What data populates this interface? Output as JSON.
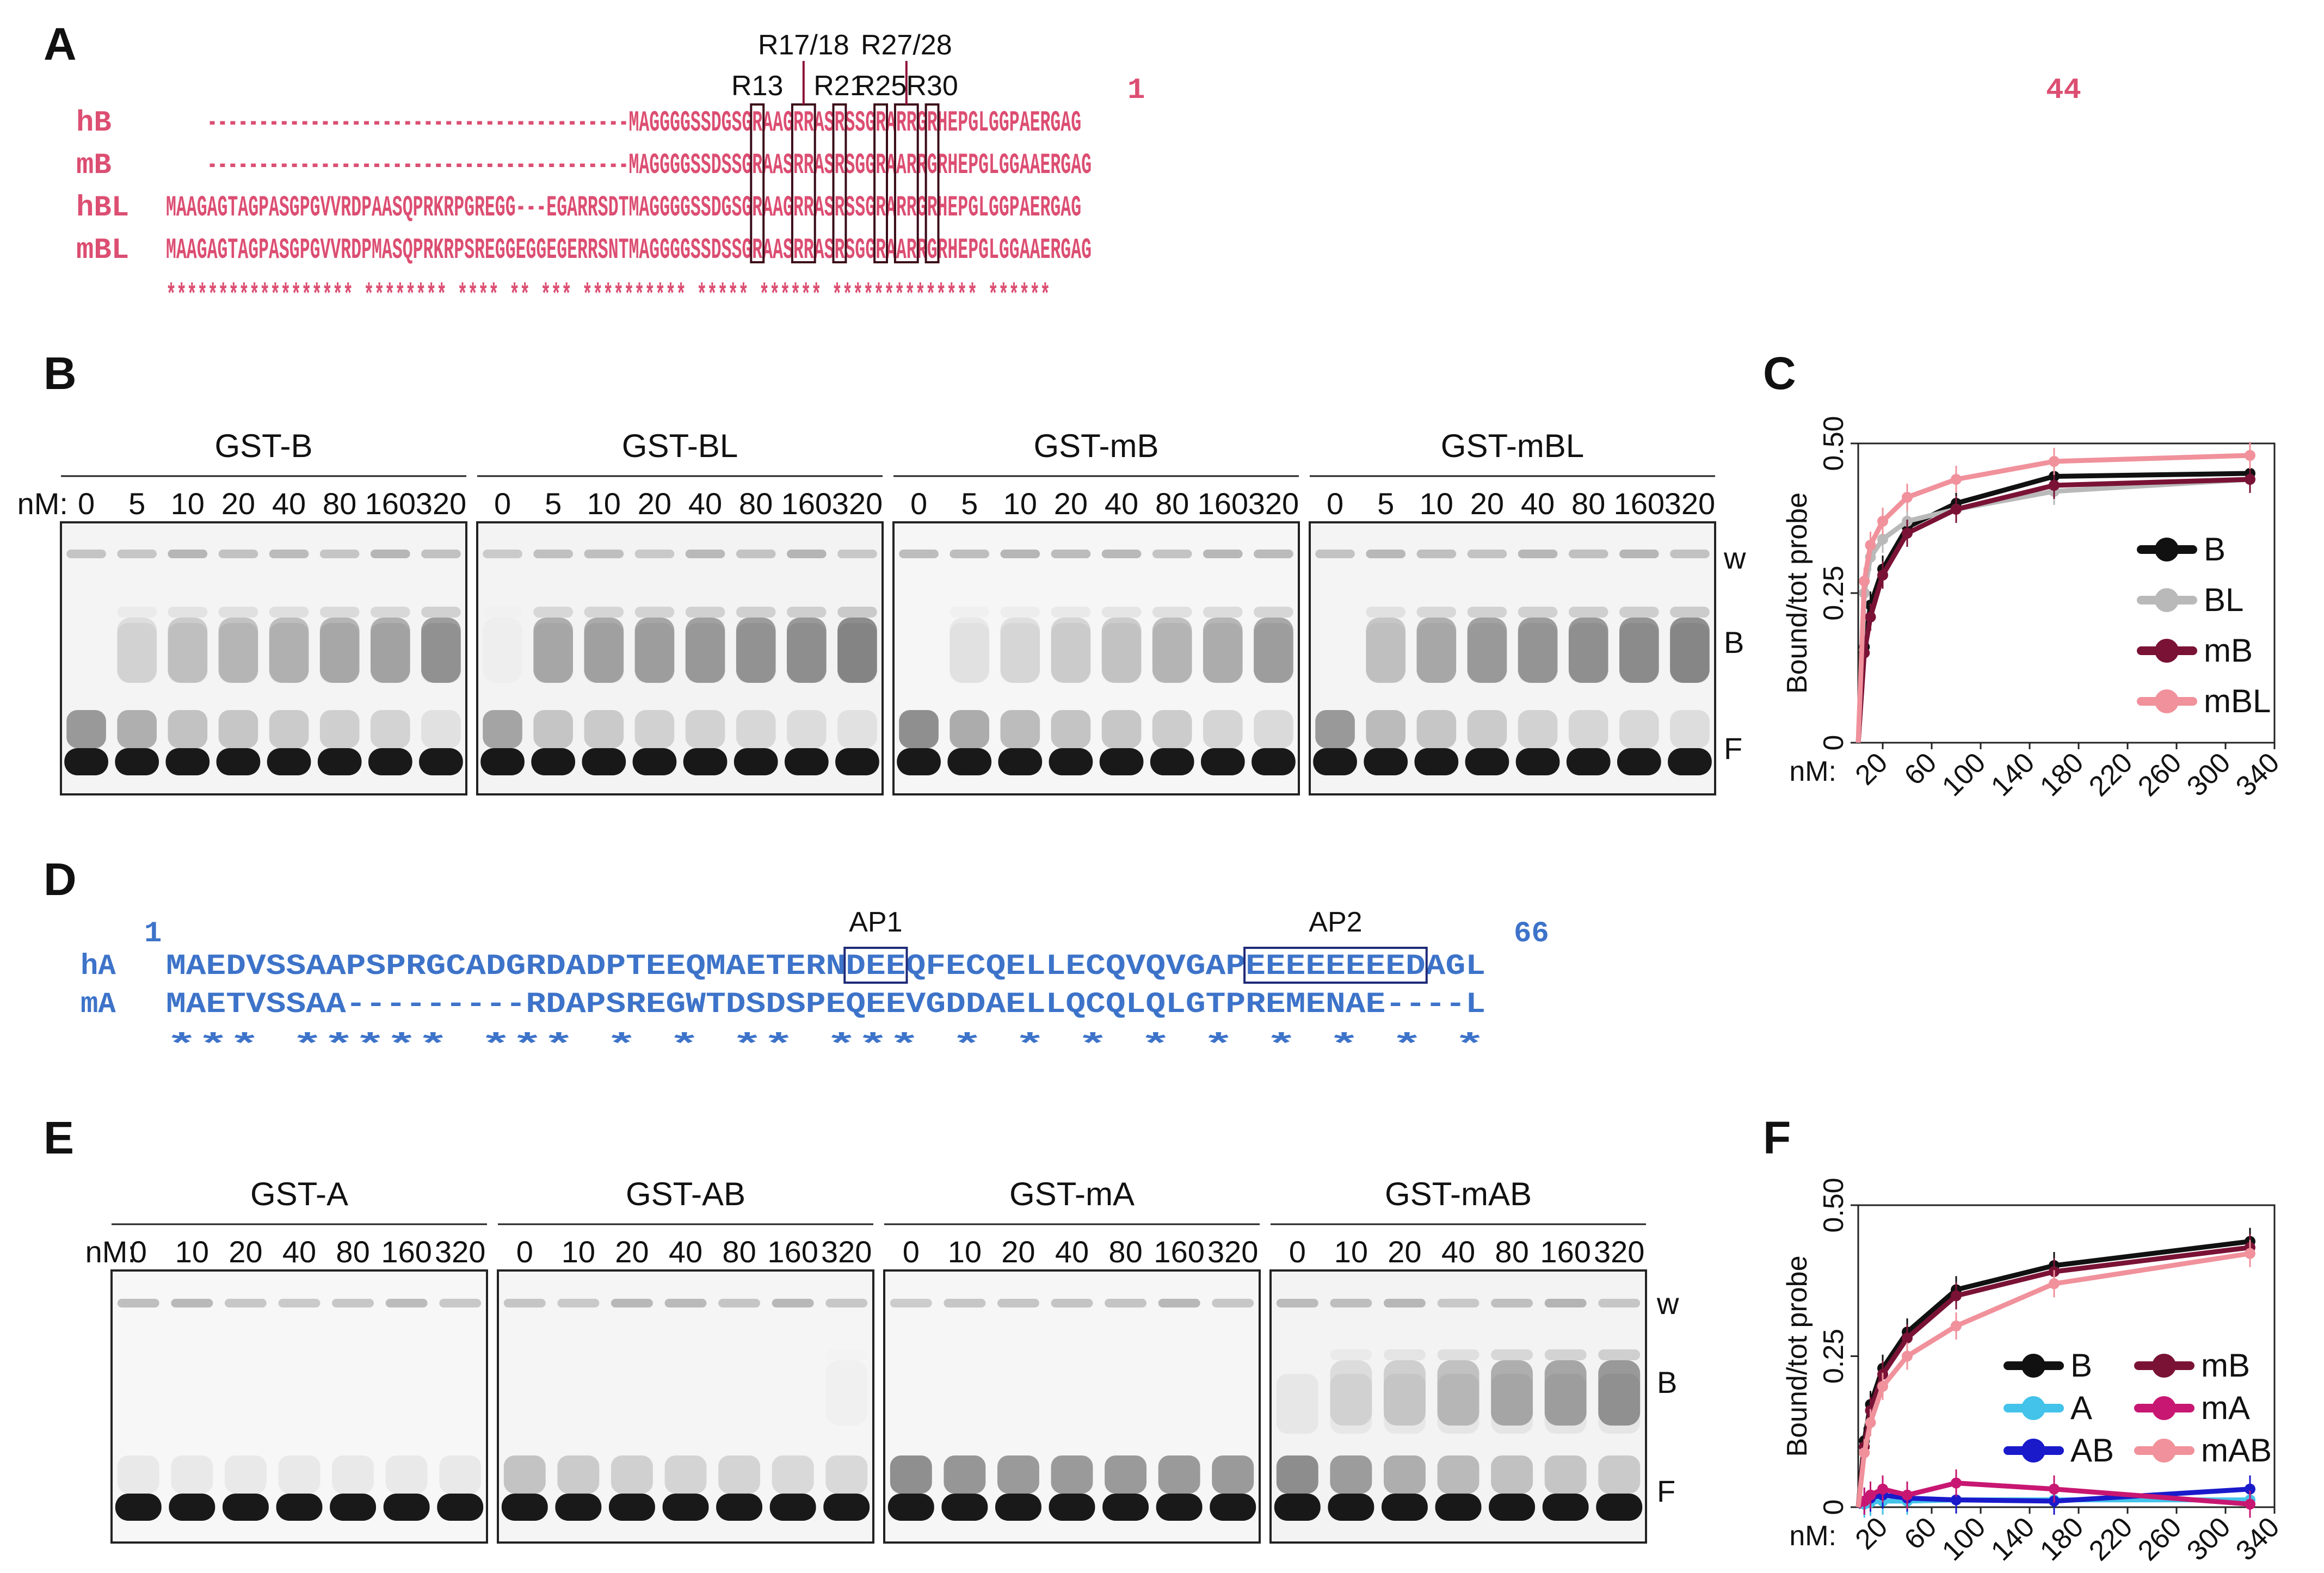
{
  "panel_labels": {
    "A": "A",
    "B": "B",
    "C": "C",
    "D": "D",
    "E": "E",
    "F": "F"
  },
  "colors": {
    "seqA": "#dc4e72",
    "seqD": "#3d73c9",
    "boxA": "#3b0b18",
    "boxD": "#1e2a78",
    "annA": "#8c1238",
    "annD": "#253b8f"
  },
  "seqA": {
    "start_label": "1",
    "end_label": "44",
    "rows": [
      {
        "name": "hB",
        "seq": "-----------------------------------------MAGGGGSSDGSGRAAGRRASRSSGRARRGRHEPGLGGPAERGAG"
      },
      {
        "name": "mB",
        "seq": "-----------------------------------------MAGGGGSSDSSGRAASRRASRSGGRAARRGRHEPGLGGAAERGAG"
      },
      {
        "name": "hBL",
        "seq": "MAAGAGTAGPASGPGVVRDPAASQPRKRPGREGG---EGARRSDTMAGGGGSSDGSGRAAGRRASRSSGRARRGRHEPGLGGPAERGAG"
      },
      {
        "name": "mBL",
        "seq": "MAAGAGTAGPASGPGVVRDPMASQPRKRPSREGGEGGEGERRSNTMAGGGGSSDSSGRAASRRASRSGGRAARRGRHEPGLGGAAERGAG"
      }
    ],
    "stars": "****************** ******** ****  ** *** ********** ***** ****** ************** ******",
    "annotations": [
      "R13",
      "R17/18",
      "R21",
      "R25",
      "R27/28",
      "R30"
    ]
  },
  "seqD": {
    "start_label": "1",
    "end_label": "66",
    "rows": [
      {
        "name": "hA",
        "seq": "MAEDVSSAAPSPRGCADGRDADPTEEQMAETERNDEEQFECQELLECQVQVGAPEEEEEEEEDAGL"
      },
      {
        "name": "mA",
        "seq": "MAETVSSAA---------RDAPSREGWTDSDSPEQEEVGDDAELLQCQLQLGTPREMENAE----L"
      }
    ],
    "stars": "*** *****         *** * *          **    ***  * * * * * * *  *   *",
    "annotations": [
      "AP1",
      "AP2"
    ]
  },
  "gelsB": {
    "conc_prefix": "nM:",
    "concs": [
      "0",
      "5",
      "10",
      "20",
      "40",
      "80",
      "160",
      "320"
    ],
    "titles": [
      "GST-B",
      "GST-BL",
      "GST-mB",
      "GST-mBL"
    ],
    "side": [
      "w",
      "B",
      "F"
    ]
  },
  "gelsE": {
    "conc_prefix": "nM:",
    "concs": [
      "0",
      "10",
      "20",
      "40",
      "80",
      "160",
      "320"
    ],
    "titles": [
      "GST-A",
      "GST-AB",
      "GST-mA",
      "GST-mAB"
    ],
    "side": [
      "w",
      "B",
      "F"
    ]
  },
  "chart_data": [
    {
      "type": "line",
      "panel": "C",
      "ylabel": "Bound/tot probe",
      "xlabel": "nM:",
      "xlim": [
        0,
        340
      ],
      "ylim": [
        0,
        0.5
      ],
      "xticks": [
        "20",
        "60",
        "100",
        "140",
        "180",
        "220",
        "260",
        "300",
        "340"
      ],
      "yticks": [
        "0",
        "0.25",
        "0.50"
      ],
      "x": [
        0,
        5,
        10,
        20,
        40,
        80,
        160,
        320
      ],
      "series": [
        {
          "name": "B",
          "color": "#111111",
          "values": [
            0,
            0.16,
            0.23,
            0.29,
            0.36,
            0.4,
            0.445,
            0.45
          ]
        },
        {
          "name": "BL",
          "color": "#b9b9b9",
          "values": [
            0,
            0.25,
            0.31,
            0.34,
            0.37,
            0.39,
            0.42,
            0.44
          ]
        },
        {
          "name": "mB",
          "color": "#7a1236",
          "values": [
            0,
            0.15,
            0.21,
            0.28,
            0.35,
            0.39,
            0.43,
            0.44
          ]
        },
        {
          "name": "mBL",
          "color": "#f0919b",
          "values": [
            0,
            0.27,
            0.33,
            0.37,
            0.41,
            0.44,
            0.47,
            0.48
          ]
        }
      ],
      "legend": "right"
    },
    {
      "type": "line",
      "panel": "F",
      "ylabel": "Bound/tot probe",
      "xlabel": "nM:",
      "xlim": [
        0,
        340
      ],
      "ylim": [
        0,
        0.5
      ],
      "xticks": [
        "20",
        "60",
        "100",
        "140",
        "180",
        "220",
        "260",
        "300",
        "340"
      ],
      "yticks": [
        "0",
        "0.25",
        "0.50"
      ],
      "x": [
        0,
        5,
        10,
        20,
        40,
        80,
        160,
        320
      ],
      "series": [
        {
          "name": "B",
          "color": "#111111",
          "values": [
            0,
            0.11,
            0.17,
            0.23,
            0.29,
            0.36,
            0.4,
            0.44
          ]
        },
        {
          "name": "A",
          "color": "#43c3ea",
          "values": [
            0,
            0.005,
            0.008,
            0.01,
            0.01,
            0.012,
            0.012,
            0.012
          ]
        },
        {
          "name": "AB",
          "color": "#1a1acb",
          "values": [
            0,
            0.01,
            0.015,
            0.02,
            0.015,
            0.012,
            0.01,
            0.03
          ]
        },
        {
          "name": "mB",
          "color": "#7a1236",
          "values": [
            0,
            0.1,
            0.16,
            0.22,
            0.28,
            0.35,
            0.39,
            0.43
          ]
        },
        {
          "name": "mA",
          "color": "#c81772",
          "values": [
            0,
            0.01,
            0.02,
            0.03,
            0.02,
            0.04,
            0.03,
            0.005
          ]
        },
        {
          "name": "mAB",
          "color": "#f0919b",
          "values": [
            0,
            0.09,
            0.14,
            0.2,
            0.25,
            0.3,
            0.37,
            0.42
          ]
        }
      ],
      "legend": "right"
    }
  ]
}
